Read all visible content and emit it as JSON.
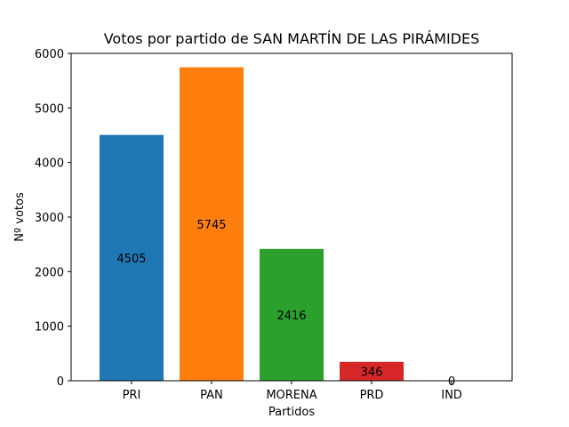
{
  "chart_data": {
    "type": "bar",
    "title": "Votos por partido de SAN MARTÍN DE LAS PIRÁMIDES",
    "xlabel": "Partidos",
    "ylabel": "Nº votos",
    "categories": [
      "PRI",
      "PAN",
      "MORENA",
      "PRD",
      "IND"
    ],
    "values": [
      4505,
      5745,
      2416,
      346,
      0
    ],
    "data_labels": [
      "4505",
      "5745",
      "2416",
      "346",
      "0"
    ],
    "colors": [
      "#1f77b4",
      "#ff7f0e",
      "#2ca02c",
      "#d62728",
      "#9467bd"
    ],
    "ylim": [
      0,
      6000
    ],
    "yticks": [
      0,
      1000,
      2000,
      3000,
      4000,
      5000,
      6000
    ],
    "grid": false,
    "legend": "none"
  }
}
